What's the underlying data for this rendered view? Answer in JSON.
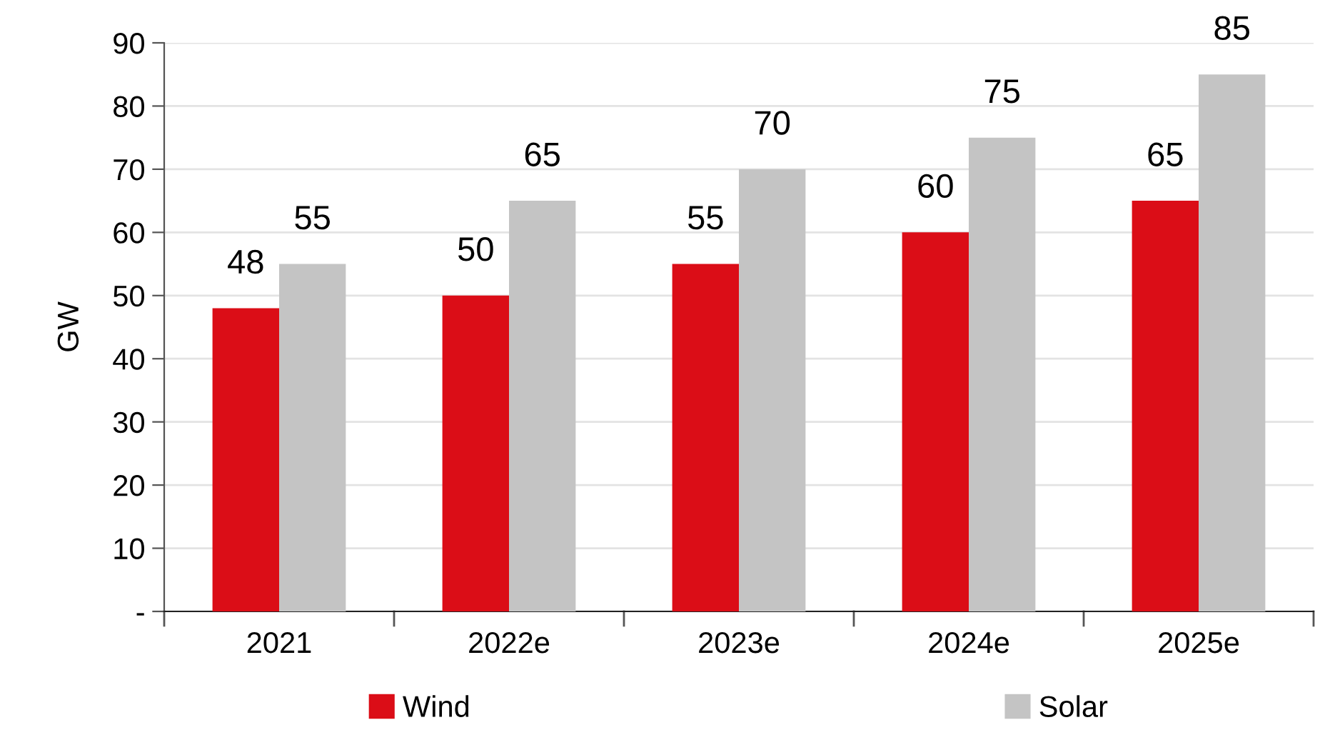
{
  "chart_data": {
    "type": "bar",
    "ylabel": "GW",
    "categories": [
      "2021",
      "2022e",
      "2023e",
      "2024e",
      "2025e"
    ],
    "series": [
      {
        "name": "Wind",
        "color": "#db0d17",
        "values": [
          48,
          50,
          55,
          60,
          65
        ]
      },
      {
        "name": "Solar",
        "color": "#c4c4c4",
        "values": [
          55,
          65,
          70,
          75,
          85
        ]
      }
    ],
    "ylim": [
      0,
      90
    ],
    "yticks": [
      {
        "value": 0,
        "label": "-"
      },
      10,
      20,
      30,
      40,
      50,
      60,
      70,
      80,
      90
    ],
    "grid": "y",
    "legend": "bottom",
    "data_labels": true
  }
}
